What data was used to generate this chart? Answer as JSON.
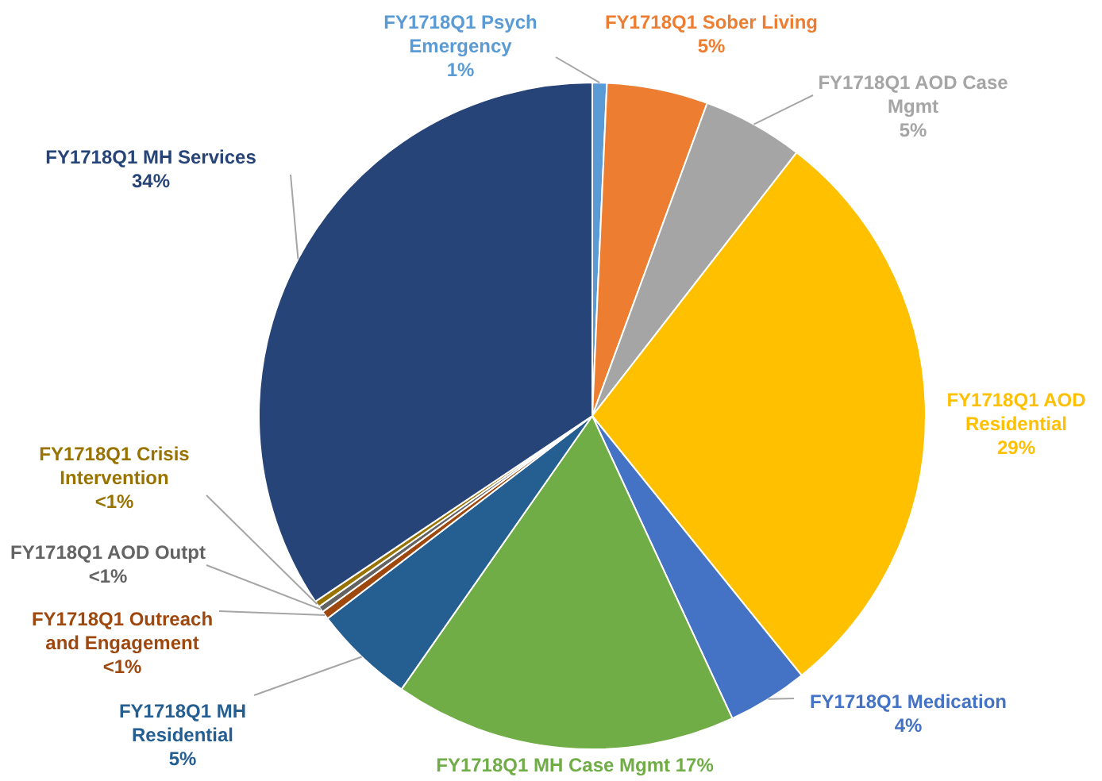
{
  "chart_data": {
    "type": "pie",
    "categories": [
      "FY1718Q1 Psych Emergency",
      "FY1718Q1 Sober Living",
      "FY1718Q1 AOD Case Mgmt",
      "FY1718Q1 AOD Residential",
      "FY1718Q1 Medication",
      "FY1718Q1 MH Case Mgmt",
      "FY1718Q1 MH Residential",
      "FY1718Q1 Outreach and Engagement",
      "FY1718Q1 AOD Outpt",
      "FY1718Q1 Crisis Intervention",
      "FY1718Q1 MH Services"
    ],
    "values": [
      0.7,
      4.9,
      4.9,
      28.7,
      3.9,
      16.6,
      4.9,
      0.4,
      0.3,
      0.3,
      34.4
    ],
    "colors": [
      "#5b9bd5",
      "#ed7d31",
      "#a5a5a5",
      "#ffc000",
      "#4472c4",
      "#70ad47",
      "#255e91",
      "#9e480e",
      "#636363",
      "#997300",
      "#264478"
    ],
    "value_labels": [
      "1%",
      "5%",
      "5%",
      "29%",
      "4%",
      "17%",
      "5%",
      "<1%",
      "<1%",
      "<1%",
      "34%"
    ]
  }
}
